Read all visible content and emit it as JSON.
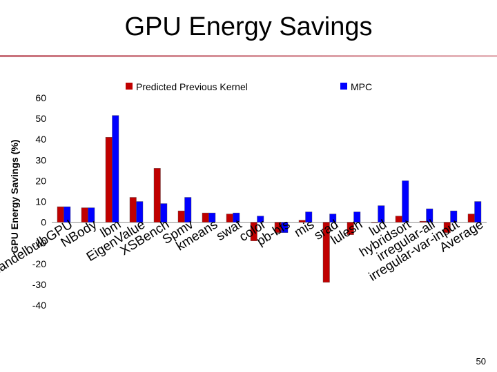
{
  "slide": {
    "title": "GPU Energy Savings",
    "page_number": "50"
  },
  "chart_data": {
    "type": "bar",
    "title": "",
    "xlabel": "",
    "ylabel": "GPU Energy Savings (%)",
    "ylim": [
      -40,
      60
    ],
    "yticks": [
      -40,
      -30,
      -20,
      -10,
      0,
      10,
      20,
      30,
      40,
      50,
      60
    ],
    "legend_position": "top",
    "categories": [
      "mandelbulbGPU",
      "NBody",
      "lbm",
      "EigenValue",
      "XSBench",
      "Spmv",
      "kmeans",
      "swat",
      "color",
      "pb-bfs",
      "mis",
      "srad",
      "lulesh",
      "lud",
      "hybridsort",
      "irregular-all",
      "irregular-var-input",
      "Average"
    ],
    "series": [
      {
        "name": "Predicted Previous Kernel",
        "color": "#c00000",
        "values": [
          7.5,
          7,
          41,
          12,
          26,
          5.5,
          4.5,
          4,
          -9,
          -5,
          1,
          -29,
          -6,
          0,
          3,
          0.5,
          -5,
          4
        ]
      },
      {
        "name": "MPC",
        "color": "#0000ff",
        "values": [
          7.5,
          7,
          51.5,
          10,
          9,
          12,
          4.5,
          4.5,
          3,
          -5,
          5,
          4,
          5,
          8,
          20,
          6.5,
          5.5,
          10
        ]
      }
    ]
  }
}
